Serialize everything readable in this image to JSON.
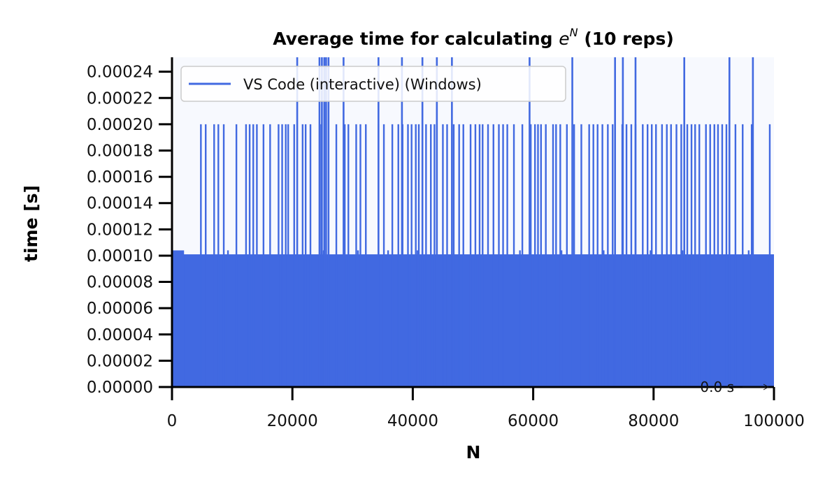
{
  "chart_data": {
    "type": "line",
    "title": "Average time for calculating",
    "title_math_base": "e",
    "title_math_exp": "N",
    "title_suffix": " (10 reps)",
    "xlabel": "N",
    "ylabel": "time [s]",
    "xlim": [
      0,
      100000
    ],
    "ylim": [
      0,
      0.000251
    ],
    "x_ticks": [
      0,
      20000,
      40000,
      60000,
      80000,
      100000
    ],
    "x_tick_labels": [
      "0",
      "20000",
      "40000",
      "60000",
      "80000",
      "100000"
    ],
    "y_ticks": [
      0,
      2e-05,
      4e-05,
      6e-05,
      8e-05,
      0.0001,
      0.00012,
      0.00014,
      0.00016,
      0.00018,
      0.0002,
      0.00022,
      0.00024
    ],
    "y_tick_labels": [
      "0.00000",
      "0.00002",
      "0.00004",
      "0.00006",
      "0.00008",
      "0.00010",
      "0.00012",
      "0.00014",
      "0.00016",
      "0.00018",
      "0.00020",
      "0.00022",
      "0.00024"
    ],
    "grid": false,
    "legend_position": "top-left",
    "series": [
      {
        "name": "VS Code (interactive) (Windows)",
        "color": "#4169e1",
        "baseline": 0.000101,
        "initial_segment": {
          "x_end": 2000,
          "value": 0.000104
        },
        "spikes_0_0002": [
          4800,
          5600,
          7000,
          7700,
          8600,
          10700,
          12300,
          12900,
          13500,
          14100,
          15200,
          16300,
          17700,
          18300,
          18900,
          19300,
          20300,
          21700,
          22200,
          23000,
          24800,
          27300,
          28700,
          29300,
          30600,
          31300,
          32200,
          34300,
          35200,
          36600,
          37600,
          38300,
          39200,
          39800,
          40500,
          41000,
          42200,
          43000,
          43600,
          45000,
          45700,
          46800,
          47700,
          48400,
          49600,
          50400,
          51100,
          51600,
          52500,
          53400,
          54300,
          55000,
          55700,
          56800,
          58200,
          59600,
          60300,
          60800,
          61300,
          62100,
          63300,
          63800,
          64500,
          65600,
          66800,
          68000,
          69300,
          70000,
          70700,
          71500,
          72400,
          73200,
          74800,
          75500,
          76300,
          77000,
          78200,
          79000,
          79700,
          80400,
          81400,
          82200,
          82900,
          83800,
          84600,
          85600,
          86300,
          86900,
          87600,
          88700,
          89400,
          90100,
          90700,
          91400,
          92100,
          93600,
          94800,
          96300,
          99300
        ],
        "spikes_above_axis": [
          20800,
          24500,
          24900,
          25300,
          25600,
          26000,
          28500,
          34300,
          38200,
          41600,
          44000,
          46500,
          59400,
          66500,
          73600,
          74900,
          77000,
          85100,
          92600,
          96500
        ],
        "spikes_0_000104": [
          9300,
          25200,
          30900,
          35900,
          40800,
          57800,
          64700,
          71700,
          79500,
          84800,
          95800
        ]
      }
    ],
    "annotation": "0.0 s"
  }
}
